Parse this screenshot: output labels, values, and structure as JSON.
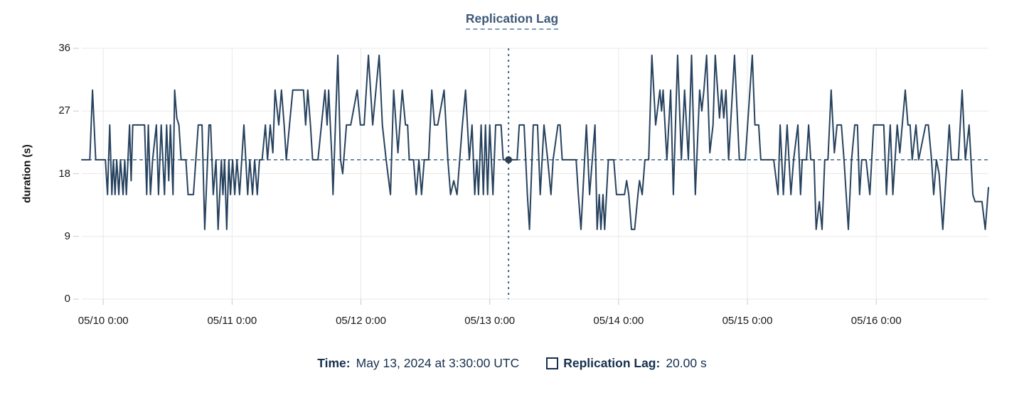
{
  "title": "Replication Lag",
  "y_axis_title": "duration (s)",
  "tooltip": {
    "time_label": "Time:",
    "time_value": "May 13, 2024 at 3:30:00 UTC",
    "series_label": "Replication Lag:",
    "series_value": "20.00 s"
  },
  "colors": {
    "line": "#27425e",
    "dot": "#2b3e53",
    "crosshair": "#3d6a87",
    "reference": "#3d6a87",
    "title_text": "#3c5a78",
    "tooltip_text": "#16304d",
    "axis_text": "#1a1a1a",
    "grid": "#e8e8e8",
    "tick": "#c9c9c9",
    "title_underline": "#7d9cba"
  },
  "chart_data": {
    "type": "line",
    "title": "Replication Lag",
    "xlabel": "",
    "ylabel": "duration (s)",
    "x_unit": "hours since 2024-05-09 20:00 UTC",
    "x_range": [
      0,
      168.9
    ],
    "ylim": [
      0,
      36
    ],
    "grid": true,
    "y_ticks": [
      {
        "value": 0,
        "label": "0"
      },
      {
        "value": 9,
        "label": "9"
      },
      {
        "value": 18,
        "label": "18"
      },
      {
        "value": 27,
        "label": "27"
      },
      {
        "value": 36,
        "label": "36"
      }
    ],
    "x_ticks": [
      {
        "t": 4,
        "label": "05/10 0:00"
      },
      {
        "t": 28,
        "label": "05/11 0:00"
      },
      {
        "t": 52,
        "label": "05/12 0:00"
      },
      {
        "t": 76,
        "label": "05/13 0:00"
      },
      {
        "t": 100,
        "label": "05/14 0:00"
      },
      {
        "t": 124,
        "label": "05/15 0:00"
      },
      {
        "t": 148,
        "label": "05/16 0:00"
      }
    ],
    "crosshair": {
      "t": 79.5,
      "value": 20,
      "time_text": "May 13, 2024 at 3:30:00 UTC",
      "value_text": "20.00 s"
    },
    "series": [
      {
        "name": "Replication Lag",
        "unit": "s",
        "points": [
          [
            0,
            20
          ],
          [
            1.5,
            20
          ],
          [
            2,
            30
          ],
          [
            2.6,
            20
          ],
          [
            4.4,
            20
          ],
          [
            4.8,
            15
          ],
          [
            5.2,
            25
          ],
          [
            5.6,
            15
          ],
          [
            5.9,
            20
          ],
          [
            6.2,
            15
          ],
          [
            6.5,
            20
          ],
          [
            6.9,
            15
          ],
          [
            7.2,
            20
          ],
          [
            7.7,
            15
          ],
          [
            8,
            20
          ],
          [
            8.3,
            15
          ],
          [
            8.9,
            25
          ],
          [
            9.2,
            17
          ],
          [
            9.5,
            25
          ],
          [
            10.2,
            25
          ],
          [
            11.7,
            25
          ],
          [
            12.1,
            15
          ],
          [
            12.4,
            25
          ],
          [
            12.8,
            15
          ],
          [
            13.2,
            20
          ],
          [
            13.9,
            25
          ],
          [
            14.3,
            15
          ],
          [
            14.8,
            25
          ],
          [
            15.4,
            15
          ],
          [
            15.8,
            25
          ],
          [
            16.2,
            17
          ],
          [
            16.5,
            25
          ],
          [
            17,
            15
          ],
          [
            17.3,
            30
          ],
          [
            17.7,
            26
          ],
          [
            18.1,
            25
          ],
          [
            18.5,
            20
          ],
          [
            19.4,
            20
          ],
          [
            19.8,
            15
          ],
          [
            20.8,
            15
          ],
          [
            21.7,
            25
          ],
          [
            22.4,
            25
          ],
          [
            22.9,
            10
          ],
          [
            23.7,
            25
          ],
          [
            24,
            25
          ],
          [
            24.5,
            15
          ],
          [
            25,
            20
          ],
          [
            25.4,
            10
          ],
          [
            26,
            20
          ],
          [
            26.3,
            15
          ],
          [
            26.6,
            20
          ],
          [
            27,
            10
          ],
          [
            27.4,
            20
          ],
          [
            27.7,
            15
          ],
          [
            28.1,
            20
          ],
          [
            28.5,
            15
          ],
          [
            28.9,
            20
          ],
          [
            29.4,
            15
          ],
          [
            30.2,
            25
          ],
          [
            30.9,
            15
          ],
          [
            31.3,
            20
          ],
          [
            31.8,
            15
          ],
          [
            32.2,
            20
          ],
          [
            32.7,
            15
          ],
          [
            33.1,
            20
          ],
          [
            33.6,
            20
          ],
          [
            34.2,
            25
          ],
          [
            34.6,
            20
          ],
          [
            35.1,
            25
          ],
          [
            35.6,
            21
          ],
          [
            36,
            30
          ],
          [
            36.7,
            25
          ],
          [
            37.2,
            30
          ],
          [
            37.7,
            25
          ],
          [
            38.1,
            20
          ],
          [
            38.7,
            25
          ],
          [
            39.3,
            30
          ],
          [
            41.3,
            30
          ],
          [
            41.7,
            25
          ],
          [
            42.1,
            30
          ],
          [
            42.6,
            25
          ],
          [
            43,
            20
          ],
          [
            44,
            20
          ],
          [
            45.3,
            30
          ],
          [
            45.7,
            25
          ],
          [
            46,
            30
          ],
          [
            46.6,
            20
          ],
          [
            46.8,
            15
          ],
          [
            47.7,
            35
          ],
          [
            48.2,
            20
          ],
          [
            48.6,
            18
          ],
          [
            49.3,
            25
          ],
          [
            50.1,
            25
          ],
          [
            51.3,
            30
          ],
          [
            51.9,
            25
          ],
          [
            52.6,
            25
          ],
          [
            53.4,
            35
          ],
          [
            54.2,
            25
          ],
          [
            55.4,
            35
          ],
          [
            56,
            25
          ],
          [
            56.7,
            20
          ],
          [
            57.5,
            15
          ],
          [
            58.1,
            30
          ],
          [
            58.9,
            21
          ],
          [
            59.7,
            30
          ],
          [
            60.3,
            25
          ],
          [
            60.7,
            25
          ],
          [
            61,
            20
          ],
          [
            61.8,
            20
          ],
          [
            62.3,
            15
          ],
          [
            62.8,
            20
          ],
          [
            63.3,
            15
          ],
          [
            63.8,
            20
          ],
          [
            64.6,
            20
          ],
          [
            65.2,
            30
          ],
          [
            65.7,
            25
          ],
          [
            66.3,
            25
          ],
          [
            67.5,
            30
          ],
          [
            68.2,
            20
          ],
          [
            68.7,
            15
          ],
          [
            69.3,
            17
          ],
          [
            69.9,
            15
          ],
          [
            70.9,
            25
          ],
          [
            71.5,
            30
          ],
          [
            72.2,
            20
          ],
          [
            72.7,
            25
          ],
          [
            73.2,
            15
          ],
          [
            73.6,
            20
          ],
          [
            73.9,
            15
          ],
          [
            74.4,
            25
          ],
          [
            74.8,
            15
          ],
          [
            75.2,
            25
          ],
          [
            75.6,
            15
          ],
          [
            76,
            25
          ],
          [
            76.6,
            15
          ],
          [
            77.1,
            25
          ],
          [
            78.1,
            25
          ],
          [
            78.5,
            20
          ],
          [
            81.1,
            20
          ],
          [
            81.5,
            25
          ],
          [
            82.4,
            25
          ],
          [
            83,
            15
          ],
          [
            83.4,
            10
          ],
          [
            84.1,
            25
          ],
          [
            84.9,
            25
          ],
          [
            85.4,
            15
          ],
          [
            86.1,
            25
          ],
          [
            86.8,
            20
          ],
          [
            87.4,
            15
          ],
          [
            87.8,
            20
          ],
          [
            88.7,
            25
          ],
          [
            89.1,
            25
          ],
          [
            89.5,
            20
          ],
          [
            92.1,
            20
          ],
          [
            92.5,
            15
          ],
          [
            93,
            10
          ],
          [
            94,
            25
          ],
          [
            94.6,
            15
          ],
          [
            95.6,
            25
          ],
          [
            96,
            10
          ],
          [
            96.4,
            15
          ],
          [
            96.7,
            10
          ],
          [
            97.1,
            15
          ],
          [
            97.4,
            10
          ],
          [
            98.1,
            20
          ],
          [
            99.1,
            20
          ],
          [
            99.6,
            15
          ],
          [
            100,
            15
          ],
          [
            101.1,
            15
          ],
          [
            101.5,
            17
          ],
          [
            101.9,
            15
          ],
          [
            102.4,
            10
          ],
          [
            103,
            10
          ],
          [
            103.6,
            15
          ],
          [
            103.9,
            17
          ],
          [
            104.4,
            15
          ],
          [
            104.9,
            20
          ],
          [
            105.6,
            20
          ],
          [
            106.2,
            35
          ],
          [
            106.9,
            25
          ],
          [
            107.7,
            30
          ],
          [
            108,
            27
          ],
          [
            108.3,
            30
          ],
          [
            109,
            20
          ],
          [
            109.7,
            30
          ],
          [
            110.2,
            15
          ],
          [
            111,
            35
          ],
          [
            111.7,
            20
          ],
          [
            112.3,
            30
          ],
          [
            113,
            20
          ],
          [
            113.6,
            35
          ],
          [
            114.3,
            15
          ],
          [
            115.1,
            30
          ],
          [
            115.5,
            27
          ],
          [
            115.9,
            30
          ],
          [
            116.4,
            35
          ],
          [
            117,
            21
          ],
          [
            117.6,
            25
          ],
          [
            118,
            35
          ],
          [
            118.8,
            26
          ],
          [
            119.2,
            30
          ],
          [
            119.6,
            26
          ],
          [
            120,
            30
          ],
          [
            120.5,
            20
          ],
          [
            121.6,
            35
          ],
          [
            122.5,
            20
          ],
          [
            123.6,
            20
          ],
          [
            124.9,
            35
          ],
          [
            125.4,
            25
          ],
          [
            126.1,
            25
          ],
          [
            126.5,
            20
          ],
          [
            128.9,
            20
          ],
          [
            129.7,
            15
          ],
          [
            130.1,
            25
          ],
          [
            130.7,
            15
          ],
          [
            131.4,
            25
          ],
          [
            132.1,
            15
          ],
          [
            132.6,
            20
          ],
          [
            133.4,
            25
          ],
          [
            133.9,
            15
          ],
          [
            134.2,
            20
          ],
          [
            135,
            20
          ],
          [
            135.4,
            25
          ],
          [
            135.8,
            20
          ],
          [
            136.4,
            20
          ],
          [
            136.8,
            10
          ],
          [
            137.4,
            14
          ],
          [
            137.9,
            10
          ],
          [
            138.4,
            20
          ],
          [
            139,
            20
          ],
          [
            139.6,
            30
          ],
          [
            140.2,
            21
          ],
          [
            140.7,
            25
          ],
          [
            141.5,
            25
          ],
          [
            142,
            20
          ],
          [
            142.8,
            10
          ],
          [
            143.4,
            20
          ],
          [
            144,
            25
          ],
          [
            144.5,
            25
          ],
          [
            144.9,
            15
          ],
          [
            145.3,
            20
          ],
          [
            146.1,
            20
          ],
          [
            146.8,
            15
          ],
          [
            147.5,
            25
          ],
          [
            149.4,
            25
          ],
          [
            149.9,
            15
          ],
          [
            150.6,
            25
          ],
          [
            151.1,
            15
          ],
          [
            151.9,
            25
          ],
          [
            152.4,
            21
          ],
          [
            153.4,
            30
          ],
          [
            153.9,
            25
          ],
          [
            154.3,
            25
          ],
          [
            154.7,
            20
          ],
          [
            155.4,
            25
          ],
          [
            155.9,
            20
          ],
          [
            157.2,
            25
          ],
          [
            157.7,
            25
          ],
          [
            158.3,
            20
          ],
          [
            158.7,
            15
          ],
          [
            159.2,
            20
          ],
          [
            159.7,
            18
          ],
          [
            160.4,
            10
          ],
          [
            161.2,
            20
          ],
          [
            161.6,
            25
          ],
          [
            162,
            20
          ],
          [
            163.3,
            20
          ],
          [
            164,
            30
          ],
          [
            164.6,
            20
          ],
          [
            165.3,
            25
          ],
          [
            166,
            15
          ],
          [
            166.4,
            14
          ],
          [
            167.7,
            14
          ],
          [
            168.3,
            10
          ],
          [
            168.9,
            16
          ]
        ]
      }
    ],
    "legend_position": "bottom"
  }
}
